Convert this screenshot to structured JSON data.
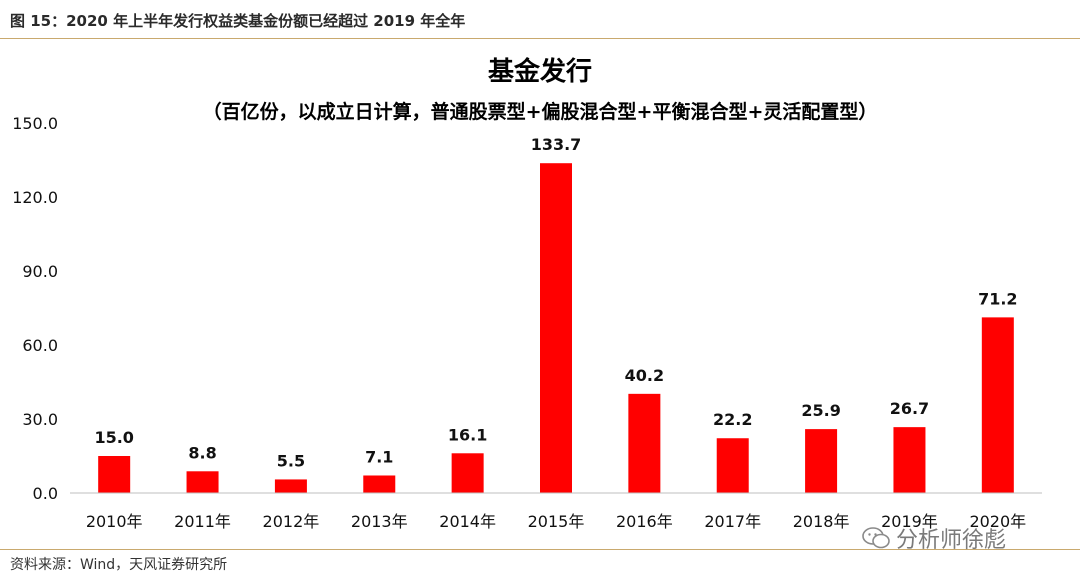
{
  "header": {
    "caption": "图 15：2020 年上半年发行权益类基金份额已经超过 2019 年全年"
  },
  "footer": {
    "source": "资料来源：Wind，天风证券研究所"
  },
  "watermark": {
    "text": "分析师徐彪",
    "icon": "wechat-icon"
  },
  "colors": {
    "bar": "#ff0000",
    "axis": "#bfbfbf",
    "rule": "#c9a96e"
  },
  "chart_data": {
    "type": "bar",
    "title": "基金发行",
    "subtitle": "（百亿份，以成立日计算，普通股票型+偏股混合型+平衡混合型+灵活配置型）",
    "categories": [
      "2010年",
      "2011年",
      "2012年",
      "2013年",
      "2014年",
      "2015年",
      "2016年",
      "2017年",
      "2018年",
      "2019年",
      "2020年"
    ],
    "values": [
      15.0,
      8.8,
      5.5,
      7.1,
      16.1,
      133.7,
      40.2,
      22.2,
      25.9,
      26.7,
      71.2
    ],
    "value_labels": [
      "15.0",
      "8.8",
      "5.5",
      "7.1",
      "16.1",
      "133.7",
      "40.2",
      "22.2",
      "25.9",
      "26.7",
      "71.2"
    ],
    "yticks": [
      "0.0",
      "30.0",
      "60.0",
      "90.0",
      "120.0",
      "150.0"
    ],
    "ytick_values": [
      0,
      30,
      60,
      90,
      120,
      150
    ],
    "ylim": [
      0,
      150
    ],
    "grid": false,
    "legend": "none"
  }
}
